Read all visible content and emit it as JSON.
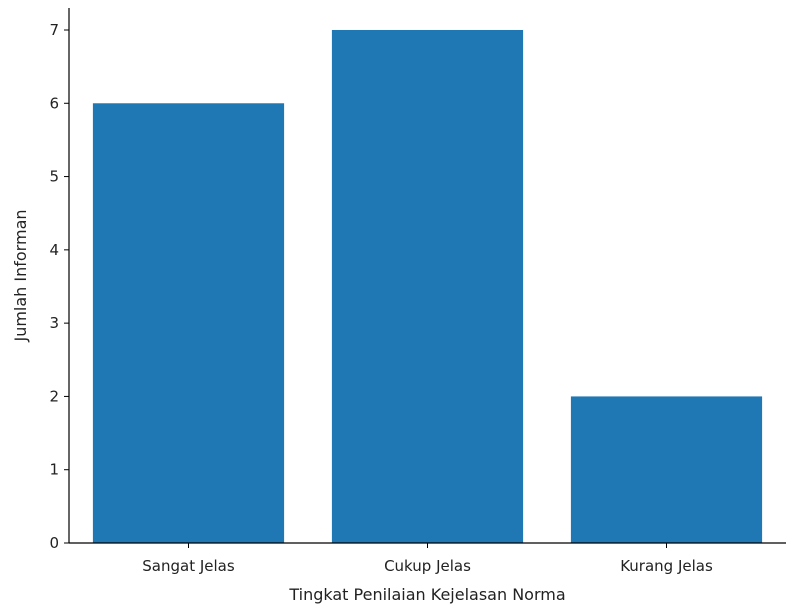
{
  "chart_data": {
    "type": "bar",
    "title": "",
    "xlabel": "Tingkat Penilaian Kejelasan Norma",
    "ylabel": "Jumlah Informan",
    "categories": [
      "Sangat Jelas",
      "Cukup Jelas",
      "Kurang Jelas"
    ],
    "values": [
      6,
      7,
      2
    ],
    "ylim": [
      0,
      7.3
    ],
    "yticks": [
      0,
      1,
      2,
      3,
      4,
      5,
      6,
      7
    ],
    "grid": false,
    "bar_color": "#1f77b4"
  }
}
